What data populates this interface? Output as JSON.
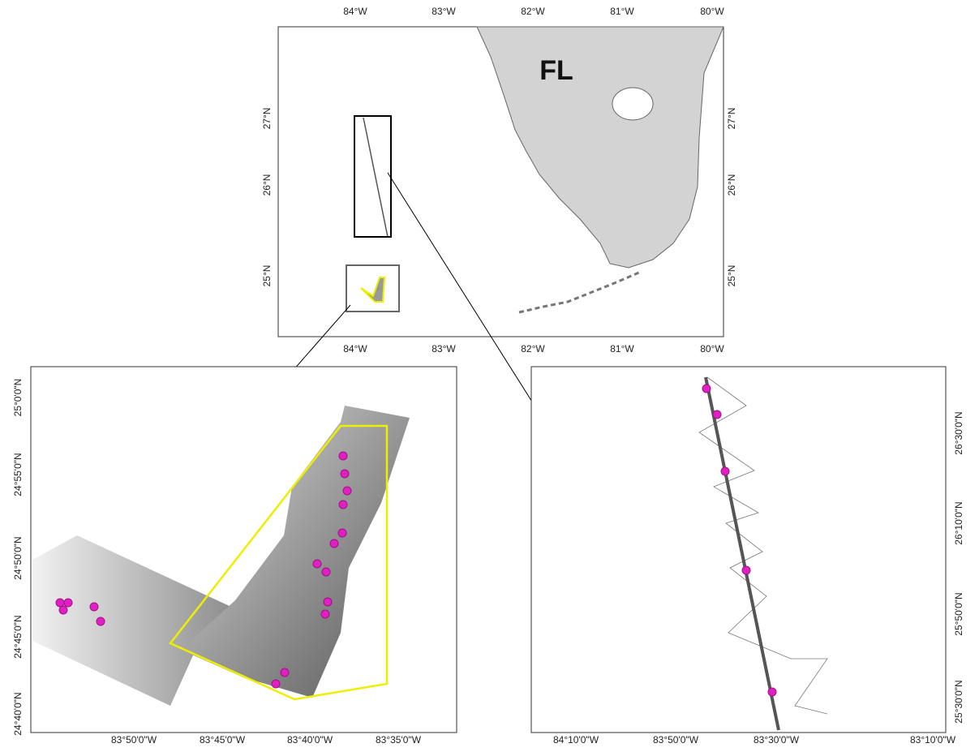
{
  "overview": {
    "label": "FL",
    "x_ticks": [
      "84°W",
      "83°W",
      "82°W",
      "81°W",
      "80°W"
    ],
    "y_ticks": [
      "27°N",
      "26°N",
      "25°N"
    ]
  },
  "inset_left": {
    "x_ticks": [
      "83°50'0\"W",
      "83°45'0\"W",
      "83°40'0\"W",
      "83°35'0\"W"
    ],
    "y_ticks": [
      "25°0'0\"N",
      "24°55'0\"N",
      "24°50'0\"N",
      "24°45'0\"N",
      "24°40'0\"N"
    ]
  },
  "inset_right": {
    "x_ticks": [
      "84°10'0\"W",
      "83°50'0\"W",
      "83°30'0\"W",
      "83°10'0\"W"
    ],
    "y_ticks": [
      "26°30'0\"N",
      "26°10'0\"N",
      "25°50'0\"N",
      "25°30'0\"N"
    ]
  }
}
